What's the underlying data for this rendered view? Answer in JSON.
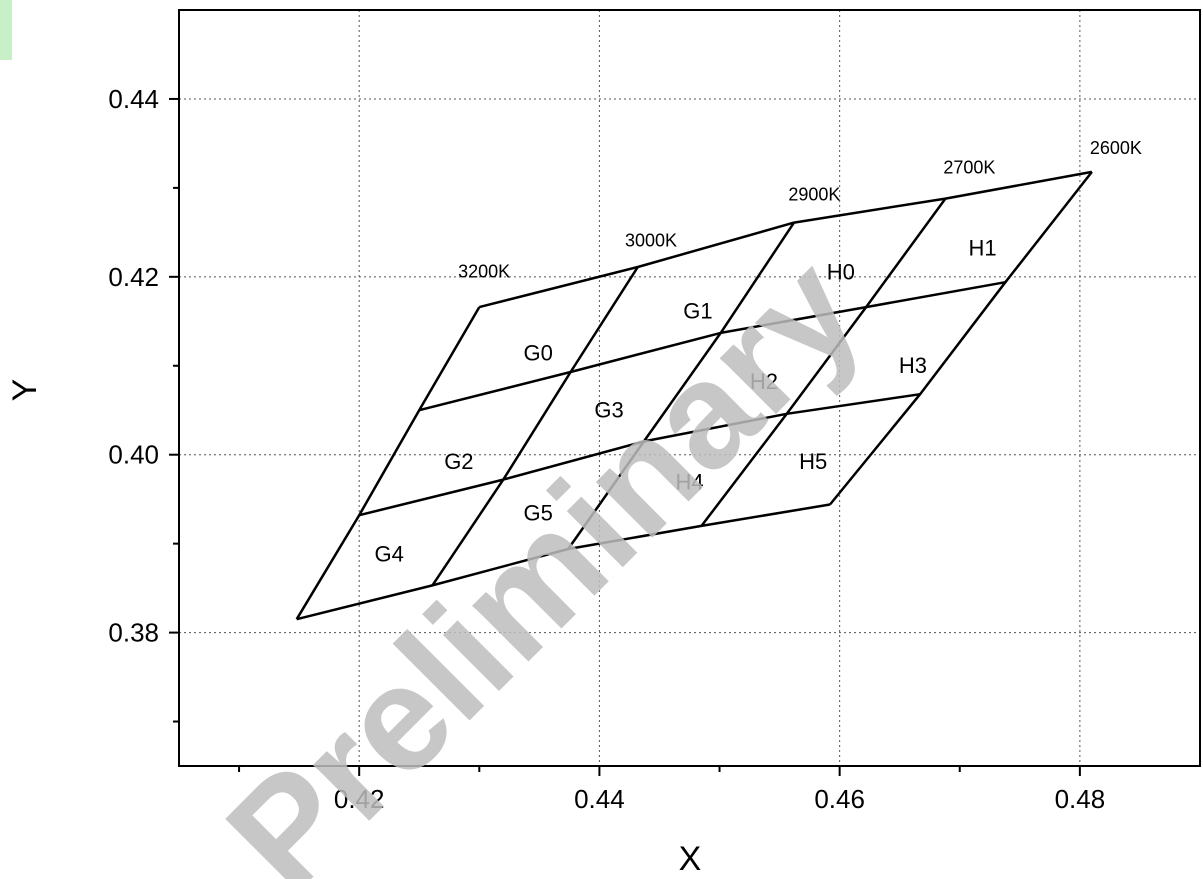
{
  "chart_data": {
    "type": "line",
    "xlabel": "X",
    "ylabel": "Y",
    "xlim": [
      0.405,
      0.49
    ],
    "ylim": [
      0.365,
      0.45
    ],
    "x_ticks": [
      0.42,
      0.44,
      0.46,
      0.48
    ],
    "x_tick_labels": [
      "0.42",
      "0.44",
      "0.46",
      "0.48"
    ],
    "y_ticks": [
      0.38,
      0.4,
      0.42,
      0.44
    ],
    "y_tick_labels": [
      "0.38",
      "0.40",
      "0.42",
      "0.44"
    ],
    "x_minor": [
      0.41,
      0.43,
      0.45,
      0.47,
      0.49
    ],
    "y_minor": [
      0.37,
      0.39,
      0.41,
      0.43,
      0.45
    ],
    "grid": true,
    "watermark": "Preliminary",
    "cct_labels": [
      {
        "text": "3200K",
        "x": 0.4304,
        "y": 0.4199
      },
      {
        "text": "3000K",
        "x": 0.4443,
        "y": 0.4234
      },
      {
        "text": "2900K",
        "x": 0.4579,
        "y": 0.4286
      },
      {
        "text": "2700K",
        "x": 0.4708,
        "y": 0.4316
      },
      {
        "text": "2600K",
        "x": 0.483,
        "y": 0.4338
      }
    ],
    "grid_points": {
      "row0": [
        [
          0.43,
          0.4166
        ],
        [
          0.4432,
          0.4211
        ],
        [
          0.4562,
          0.4261
        ],
        [
          0.4688,
          0.4288
        ],
        [
          0.481,
          0.4318
        ]
      ],
      "row1": [
        [
          0.425,
          0.405
        ],
        [
          0.4376,
          0.4093
        ],
        [
          0.4501,
          0.4137
        ],
        [
          0.4622,
          0.4166
        ],
        [
          0.4738,
          0.4194
        ]
      ],
      "row2": [
        [
          0.42,
          0.3932
        ],
        [
          0.432,
          0.3972
        ],
        [
          0.4437,
          0.4015
        ],
        [
          0.4556,
          0.4046
        ],
        [
          0.4667,
          0.4068
        ]
      ],
      "row3": [
        [
          0.4148,
          0.3815
        ],
        [
          0.4261,
          0.3853
        ],
        [
          0.4374,
          0.3894
        ],
        [
          0.4485,
          0.392
        ],
        [
          0.4592,
          0.3944
        ]
      ]
    },
    "cells": [
      {
        "label": "G0",
        "x": 0.4349,
        "y": 0.4115
      },
      {
        "label": "G1",
        "x": 0.4482,
        "y": 0.4162
      },
      {
        "label": "H0",
        "x": 0.4601,
        "y": 0.4206
      },
      {
        "label": "H1",
        "x": 0.4719,
        "y": 0.4233
      },
      {
        "label": "G2",
        "x": 0.4283,
        "y": 0.3993
      },
      {
        "label": "G3",
        "x": 0.4408,
        "y": 0.4051
      },
      {
        "label": "H2",
        "x": 0.4537,
        "y": 0.4083
      },
      {
        "label": "H3",
        "x": 0.4661,
        "y": 0.4101
      },
      {
        "label": "G4",
        "x": 0.4225,
        "y": 0.3889
      },
      {
        "label": "G5",
        "x": 0.4349,
        "y": 0.3935
      },
      {
        "label": "H4",
        "x": 0.4475,
        "y": 0.397
      },
      {
        "label": "H5",
        "x": 0.4578,
        "y": 0.3993
      }
    ]
  }
}
